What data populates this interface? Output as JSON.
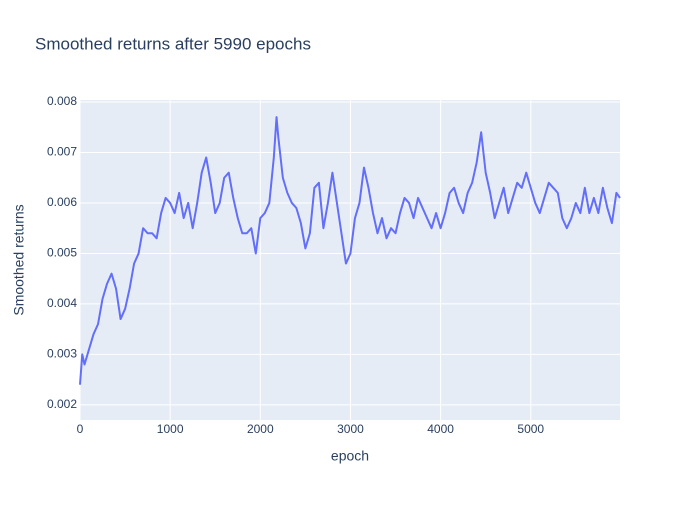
{
  "chart_data": {
    "type": "line",
    "title": "Smoothed returns after 5990 epochs",
    "x_label": "epoch",
    "y_label": "Smoothed returns",
    "x": [
      0,
      25,
      50,
      100,
      150,
      200,
      250,
      300,
      350,
      400,
      450,
      500,
      550,
      600,
      650,
      700,
      750,
      800,
      850,
      900,
      950,
      1000,
      1050,
      1100,
      1150,
      1200,
      1250,
      1300,
      1350,
      1400,
      1450,
      1500,
      1550,
      1600,
      1650,
      1700,
      1750,
      1800,
      1850,
      1900,
      1950,
      2000,
      2050,
      2100,
      2150,
      2180,
      2200,
      2250,
      2300,
      2350,
      2400,
      2450,
      2500,
      2550,
      2600,
      2650,
      2700,
      2750,
      2800,
      2850,
      2900,
      2950,
      3000,
      3050,
      3100,
      3150,
      3200,
      3250,
      3300,
      3350,
      3400,
      3450,
      3500,
      3550,
      3600,
      3650,
      3700,
      3750,
      3800,
      3850,
      3900,
      3950,
      4000,
      4050,
      4100,
      4150,
      4200,
      4250,
      4300,
      4350,
      4400,
      4450,
      4500,
      4550,
      4600,
      4650,
      4700,
      4750,
      4800,
      4850,
      4900,
      4950,
      5000,
      5050,
      5100,
      5150,
      5200,
      5250,
      5300,
      5350,
      5400,
      5450,
      5500,
      5550,
      5600,
      5650,
      5700,
      5750,
      5800,
      5850,
      5900,
      5950,
      5990
    ],
    "values": [
      0.0024,
      0.003,
      0.0028,
      0.0031,
      0.0034,
      0.0036,
      0.0041,
      0.0044,
      0.0046,
      0.0043,
      0.0037,
      0.0039,
      0.0043,
      0.0048,
      0.005,
      0.0055,
      0.0054,
      0.0054,
      0.0053,
      0.0058,
      0.0061,
      0.006,
      0.0058,
      0.0062,
      0.0057,
      0.006,
      0.0055,
      0.006,
      0.0066,
      0.0069,
      0.0064,
      0.0058,
      0.006,
      0.0065,
      0.0066,
      0.0061,
      0.0057,
      0.0054,
      0.0054,
      0.0055,
      0.005,
      0.0057,
      0.0058,
      0.006,
      0.0069,
      0.0077,
      0.0073,
      0.0065,
      0.0062,
      0.006,
      0.0059,
      0.0056,
      0.0051,
      0.0054,
      0.0063,
      0.0064,
      0.0055,
      0.006,
      0.0066,
      0.006,
      0.0054,
      0.0048,
      0.005,
      0.0057,
      0.006,
      0.0067,
      0.0063,
      0.0058,
      0.0054,
      0.0057,
      0.0053,
      0.0055,
      0.0054,
      0.0058,
      0.0061,
      0.006,
      0.0057,
      0.0061,
      0.0059,
      0.0057,
      0.0055,
      0.0058,
      0.0055,
      0.0058,
      0.0062,
      0.0063,
      0.006,
      0.0058,
      0.0062,
      0.0064,
      0.0068,
      0.0074,
      0.0066,
      0.0062,
      0.0057,
      0.006,
      0.0063,
      0.0058,
      0.0061,
      0.0064,
      0.0063,
      0.0066,
      0.0063,
      0.006,
      0.0058,
      0.0061,
      0.0064,
      0.0063,
      0.0062,
      0.0057,
      0.0055,
      0.0057,
      0.006,
      0.0058,
      0.0063,
      0.0058,
      0.0061,
      0.0058,
      0.0063,
      0.0059,
      0.0056,
      0.0062,
      0.0061
    ],
    "color": "#636efa",
    "xlim": [
      0,
      5990
    ],
    "xticks": [
      0,
      1000,
      2000,
      3000,
      4000,
      5000
    ],
    "ylim": [
      0.0017,
      0.00804
    ],
    "yticks": [
      0.002,
      0.003,
      0.004,
      0.005,
      0.006,
      0.007,
      0.008
    ],
    "grid": true
  }
}
